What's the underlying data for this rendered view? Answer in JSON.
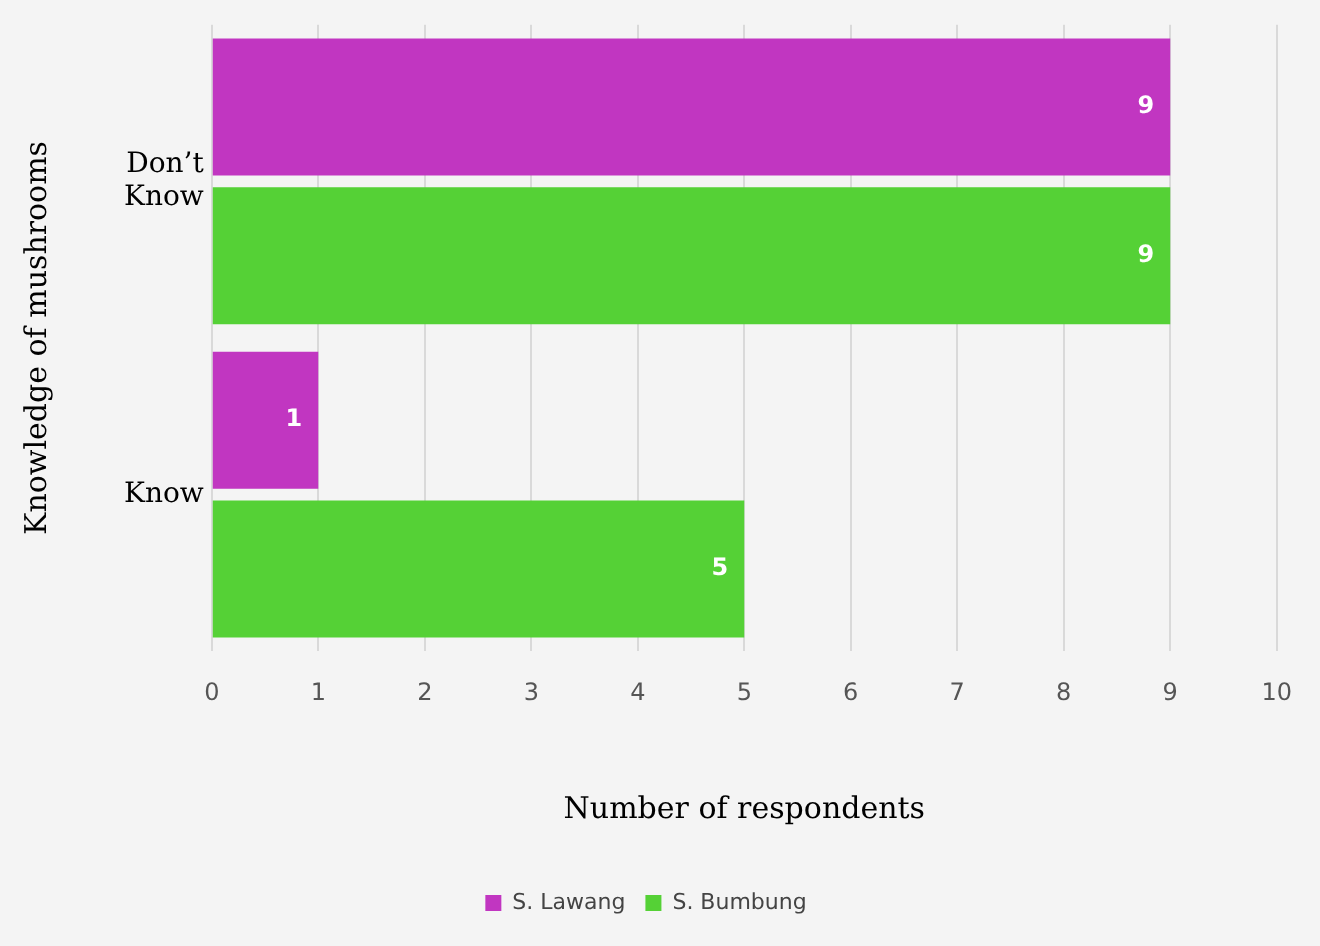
{
  "chart_data": {
    "type": "bar",
    "orientation": "horizontal",
    "xlabel": "Number of respondents",
    "ylabel": "Knowledge of mushrooms",
    "categories": [
      "Don’t Know",
      "Know"
    ],
    "series": [
      {
        "name": "S. Lawang",
        "color": "#c136c1",
        "values": [
          9,
          1
        ]
      },
      {
        "name": "S. Bumbung",
        "color": "#55d136",
        "values": [
          9,
          5
        ]
      }
    ],
    "xlim": [
      0,
      10
    ],
    "xticks": [
      0,
      1,
      2,
      3,
      4,
      5,
      6,
      7,
      8,
      9,
      10
    ],
    "grid": "x",
    "legend": "bottom",
    "data_labels": true
  }
}
